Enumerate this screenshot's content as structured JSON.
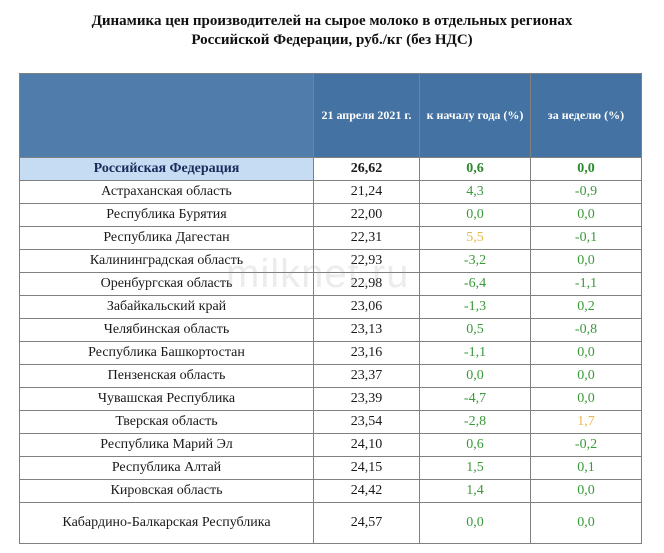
{
  "title": {
    "line1": "Динамика цен производителей на сырое молоко в отдельных регионах",
    "line2": "Российской Федерации, руб./кг (без НДС)"
  },
  "table": {
    "headers": {
      "region": "",
      "price": "21 апреля 2021 г.",
      "ytd": "к началу года (%)",
      "week": "за неделю (%)"
    },
    "rows": [
      {
        "region": "Российская Федерация",
        "price": "26,62",
        "ytd": "0,6",
        "week": "0,0"
      },
      {
        "region": "Астраханская область",
        "price": "21,24",
        "ytd": "4,3",
        "week": "-0,9"
      },
      {
        "region": "Республика Бурятия",
        "price": "22,00",
        "ytd": "0,0",
        "week": "0,0"
      },
      {
        "region": "Республика Дагестан",
        "price": "22,31",
        "ytd": "5,5",
        "week": "-0,1"
      },
      {
        "region": "Калининградская область",
        "price": "22,93",
        "ytd": "-3,2",
        "week": "0,0"
      },
      {
        "region": "Оренбургская область",
        "price": "22,98",
        "ytd": "-6,4",
        "week": "-1,1"
      },
      {
        "region": "Забайкальский край",
        "price": "23,06",
        "ytd": "-1,3",
        "week": "0,2"
      },
      {
        "region": "Челябинская область",
        "price": "23,13",
        "ytd": "0,5",
        "week": "-0,8"
      },
      {
        "region": "Республика Башкортостан",
        "price": "23,16",
        "ytd": "-1,1",
        "week": "0,0"
      },
      {
        "region": "Пензенская область",
        "price": "23,37",
        "ytd": "0,0",
        "week": "0,0"
      },
      {
        "region": "Чувашская Республика",
        "price": "23,39",
        "ytd": "-4,7",
        "week": "0,0"
      },
      {
        "region": "Тверская область",
        "price": "23,54",
        "ytd": "-2,8",
        "week": "1,7"
      },
      {
        "region": "Республика Марий Эл",
        "price": "24,10",
        "ytd": "0,6",
        "week": "-0,2"
      },
      {
        "region": "Республика Алтай",
        "price": "24,15",
        "ytd": "1,5",
        "week": "0,1"
      },
      {
        "region": "Кировская область",
        "price": "24,42",
        "ytd": "1,4",
        "week": "0,0"
      },
      {
        "region": "Кабардино-Балкарская Республика",
        "price": "24,57",
        "ytd": "0,0",
        "week": "0,0"
      }
    ]
  },
  "watermark": "milknet.ru",
  "colors": {
    "header_bg": "#4472a2",
    "highlight_bg": "#c6dcf2",
    "change_green": "#3a9a3a",
    "change_amber": "#e8b84a"
  }
}
